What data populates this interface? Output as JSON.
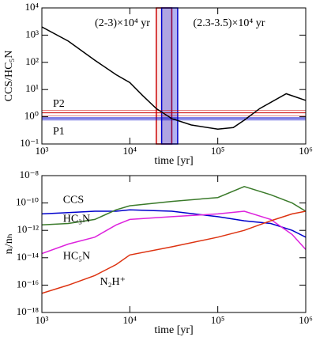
{
  "chart_data": [
    {
      "type": "line",
      "log_x": true,
      "log_y": true,
      "y_label": "CCS/HC₅N",
      "x_label": "time [yr]",
      "xlim": [
        1000,
        1000000
      ],
      "xticks": [
        {
          "value": 1000,
          "label": "10³"
        },
        {
          "value": 10000,
          "label": "10⁴"
        },
        {
          "value": 100000,
          "label": "10⁵"
        },
        {
          "value": 1000000,
          "label": "10⁶"
        }
      ],
      "ylim": [
        0.1,
        10000
      ],
      "yticks": [
        {
          "value": 0.1,
          "label": "10⁻¹"
        },
        {
          "value": 1,
          "label": "10⁰"
        },
        {
          "value": 10,
          "label": "10¹"
        },
        {
          "value": 100,
          "label": "10²"
        },
        {
          "value": 1000,
          "label": "10³"
        },
        {
          "value": 10000,
          "label": "10⁴"
        }
      ],
      "x": [
        1000,
        2000,
        4000,
        7000,
        10000,
        14000,
        20000,
        30000,
        50000,
        100000,
        150000,
        200000,
        300000,
        600000,
        1000000
      ],
      "series": [
        {
          "color": "#000000",
          "values": [
            2000,
            600,
            120,
            35,
            18,
            6,
            2,
            0.85,
            0.5,
            0.35,
            0.4,
            0.75,
            2,
            7,
            4
          ]
        }
      ],
      "spans": [
        {
          "label": "(2-3)×10⁴ yr",
          "x0": 20000,
          "x1": 30000,
          "color": "#cc0000"
        },
        {
          "label": "(2.3-3.5)×10⁴ yr",
          "x0": 23000,
          "x1": 35000,
          "color": "#0000cc"
        }
      ],
      "hlines": [
        {
          "name": "P2",
          "value": 1.4,
          "lower": 1.1,
          "upper": 1.7,
          "color": "#cc0000"
        },
        {
          "name": "P1",
          "value": 0.85,
          "lower": 0.75,
          "upper": 0.95,
          "color": "#0000cc"
        }
      ]
    },
    {
      "type": "line",
      "log_x": true,
      "log_y": true,
      "y_label": "nᵢ/nₕ",
      "x_label": "time [yr]",
      "xlim": [
        1000,
        1000000
      ],
      "xticks": [
        {
          "value": 1000,
          "label": "10³"
        },
        {
          "value": 10000,
          "label": "10⁴"
        },
        {
          "value": 100000,
          "label": "10⁵"
        },
        {
          "value": 1000000,
          "label": "10⁶"
        }
      ],
      "ylim": [
        1e-18,
        1e-08
      ],
      "yticks": [
        {
          "value": 1e-18,
          "label": "10⁻¹⁸"
        },
        {
          "value": 1e-16,
          "label": "10⁻¹⁶"
        },
        {
          "value": 1e-14,
          "label": "10⁻¹⁴"
        },
        {
          "value": 1e-12,
          "label": "10⁻¹²"
        },
        {
          "value": 1e-10,
          "label": "10⁻¹⁰"
        },
        {
          "value": 1e-08,
          "label": "10⁻⁸"
        }
      ],
      "x": [
        1000,
        2000,
        4000,
        7000,
        10000,
        30000,
        100000,
        200000,
        400000,
        700000,
        1000000
      ],
      "series": [
        {
          "name": "CCS",
          "color": "#0000cc",
          "values": [
            1.6e-11,
            2e-11,
            2.5e-11,
            2.5e-11,
            3.2e-11,
            2.5e-11,
            1e-11,
            5e-12,
            3.2e-12,
            1e-12,
            3.2e-13
          ]
        },
        {
          "name": "HC₃N",
          "color": "#3a7a2a",
          "values": [
            2.5e-12,
            3.2e-12,
            6.3e-12,
            3.2e-11,
            6.3e-11,
            1.3e-10,
            2.5e-10,
            1.6e-09,
            4e-10,
            1e-10,
            2.5e-11
          ]
        },
        {
          "name": "HC₅N",
          "color": "#dd22dd",
          "values": [
            2e-14,
            1e-13,
            3.2e-13,
            2.5e-12,
            6.3e-12,
            1e-11,
            1.6e-11,
            2.5e-11,
            6.3e-12,
            5e-13,
            4e-14
          ]
        },
        {
          "name": "N₂H⁺",
          "color": "#dd3311",
          "values": [
            2.5e-17,
            1e-16,
            5e-16,
            3.2e-15,
            1.6e-14,
            6.3e-14,
            3.2e-13,
            1e-12,
            5e-12,
            1.6e-11,
            2.5e-11
          ]
        }
      ]
    }
  ]
}
